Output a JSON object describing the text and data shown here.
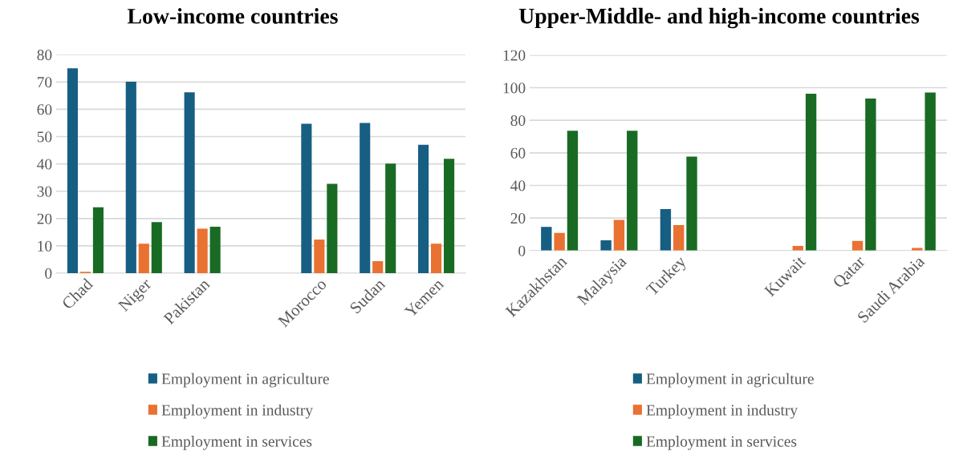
{
  "chart_data": [
    {
      "type": "bar",
      "title": "Low-income countries",
      "categories": [
        "Chad",
        "Niger",
        "Pakistan",
        null,
        "Morocco",
        "Sudan",
        "Yemen"
      ],
      "series": [
        {
          "name": "Employment in agriculture",
          "color": "#175e83",
          "values": [
            75.0,
            70.1,
            66.2,
            null,
            54.7,
            55.0,
            47.0
          ]
        },
        {
          "name": "Employment in industry",
          "color": "#e97132",
          "values": [
            0.5,
            10.8,
            16.3,
            null,
            12.3,
            4.4,
            10.8
          ]
        },
        {
          "name": "Employment in services",
          "color": "#196b24",
          "values": [
            24.1,
            18.7,
            17.0,
            null,
            32.7,
            40.1,
            41.9
          ]
        }
      ],
      "ylim": [
        0,
        80
      ],
      "yticks": [
        0,
        10,
        20,
        30,
        40,
        50,
        60,
        70,
        80
      ],
      "grid": "y",
      "legend": "bottom"
    },
    {
      "type": "bar",
      "title": "Upper-Middle- and high-income countries",
      "categories": [
        "Kazakhstan",
        "Malaysia",
        "Turkey",
        null,
        "Kuwait",
        "Qatar",
        "Saudi Arabia"
      ],
      "series": [
        {
          "name": "Employment in agriculture",
          "color": "#175e83",
          "values": [
            14.5,
            6.3,
            25.5,
            null,
            null,
            null,
            null
          ]
        },
        {
          "name": "Employment in industry",
          "color": "#e97132",
          "values": [
            10.9,
            18.9,
            15.7,
            null,
            2.9,
            5.9,
            1.6
          ]
        },
        {
          "name": "Employment in services",
          "color": "#196b24",
          "values": [
            73.6,
            73.6,
            57.7,
            null,
            96.3,
            93.4,
            97.0
          ]
        }
      ],
      "ylim": [
        0,
        120
      ],
      "yticks": [
        0,
        20,
        40,
        60,
        80,
        100,
        120
      ],
      "grid": "y",
      "legend": "bottom"
    }
  ]
}
